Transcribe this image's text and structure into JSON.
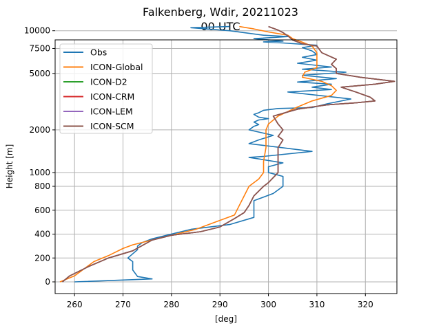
{
  "chart_data": {
    "type": "line",
    "title": "Falkenberg, Wdir, 20211023",
    "subtitle": "00 UTC",
    "xlabel": "[deg]",
    "ylabel": "Height [m]",
    "xlim": [
      256,
      326.5
    ],
    "xticks": [
      260,
      270,
      280,
      290,
      300,
      310,
      320
    ],
    "y_axis_note": "piecewise: linear 0-800 m, logarithmic 800-12000 m",
    "ylim": [
      -100,
      12000
    ],
    "yticks": [
      0,
      200,
      400,
      600,
      800,
      1000,
      2000,
      5000,
      7500,
      10000
    ],
    "grid": true,
    "legend_position": "top-left",
    "series": [
      {
        "name": "Obs",
        "color": "#1f77b4",
        "points": [
          [
            260,
            0
          ],
          [
            276,
            25
          ],
          [
            273,
            45
          ],
          [
            272,
            100
          ],
          [
            272,
            170
          ],
          [
            271,
            200
          ],
          [
            273,
            270
          ],
          [
            273,
            300
          ],
          [
            274,
            330
          ],
          [
            276,
            360
          ],
          [
            284,
            440
          ],
          [
            292,
            480
          ],
          [
            297,
            540
          ],
          [
            297,
            600
          ],
          [
            297,
            680
          ],
          [
            301,
            740
          ],
          [
            303,
            800
          ],
          [
            303,
            870
          ],
          [
            303,
            940
          ],
          [
            301,
            980
          ],
          [
            300,
            1000
          ],
          [
            300,
            1050
          ],
          [
            300,
            1100
          ],
          [
            303,
            1170
          ],
          [
            296,
            1280
          ],
          [
            299,
            1300
          ],
          [
            309,
            1410
          ],
          [
            296,
            1600
          ],
          [
            298,
            1700
          ],
          [
            301,
            1830
          ],
          [
            296,
            2000
          ],
          [
            297,
            2120
          ],
          [
            298,
            2180
          ],
          [
            297,
            2270
          ],
          [
            298,
            2350
          ],
          [
            300,
            2400
          ],
          [
            298,
            2460
          ],
          [
            297,
            2570
          ],
          [
            298,
            2640
          ],
          [
            299,
            2750
          ],
          [
            302,
            2830
          ],
          [
            309,
            2870
          ],
          [
            312,
            3050
          ],
          [
            317,
            3300
          ],
          [
            304,
            3700
          ],
          [
            313,
            3850
          ],
          [
            309,
            4000
          ],
          [
            313,
            4200
          ],
          [
            306,
            4350
          ],
          [
            314,
            4600
          ],
          [
            307,
            4850
          ],
          [
            316,
            5100
          ],
          [
            307,
            5350
          ],
          [
            313,
            5550
          ],
          [
            306,
            5900
          ],
          [
            310,
            6200
          ],
          [
            307,
            6500
          ],
          [
            310,
            6800
          ],
          [
            309,
            7200
          ],
          [
            307,
            7600
          ],
          [
            310,
            7900
          ],
          [
            303,
            8200
          ],
          [
            299,
            8350
          ],
          [
            303,
            8450
          ],
          [
            297,
            8800
          ],
          [
            304,
            9100
          ],
          [
            299,
            9300
          ],
          [
            292,
            10000
          ],
          [
            284,
            10500
          ],
          [
            292,
            10700
          ]
        ]
      },
      {
        "name": "ICON-Global",
        "color": "#ff7f0e",
        "points": [
          [
            257,
            0
          ],
          [
            260,
            50
          ],
          [
            264,
            170
          ],
          [
            267,
            220
          ],
          [
            270,
            280
          ],
          [
            272,
            310
          ],
          [
            277,
            360
          ],
          [
            280,
            390
          ],
          [
            285,
            440
          ],
          [
            289,
            500
          ],
          [
            293,
            560
          ],
          [
            294,
            640
          ],
          [
            295,
            720
          ],
          [
            296,
            800
          ],
          [
            298,
            900
          ],
          [
            299,
            1000
          ],
          [
            299,
            1200
          ],
          [
            299.5,
            1500
          ],
          [
            299.5,
            2000
          ],
          [
            300,
            2200
          ],
          [
            302,
            2500
          ],
          [
            306,
            2900
          ],
          [
            309,
            3200
          ],
          [
            313,
            3500
          ],
          [
            314,
            3800
          ],
          [
            313,
            4100
          ],
          [
            311,
            4400
          ],
          [
            307,
            4700
          ],
          [
            307.5,
            5100
          ],
          [
            310,
            5500
          ],
          [
            310,
            6000
          ],
          [
            310,
            6500
          ],
          [
            310,
            7000
          ],
          [
            309,
            7800
          ],
          [
            307,
            8300
          ],
          [
            305,
            8800
          ],
          [
            304,
            9300
          ],
          [
            300,
            9800
          ],
          [
            297,
            10300
          ],
          [
            294,
            10700
          ]
        ]
      },
      {
        "name": "ICON-D2",
        "color": "#2ca02c",
        "points": [
          [
            257.5,
            0
          ],
          [
            259,
            50
          ],
          [
            263,
            130
          ],
          [
            267,
            200
          ],
          [
            272,
            260
          ],
          [
            276,
            350
          ],
          [
            280,
            390
          ],
          [
            286,
            420
          ],
          [
            290,
            460
          ],
          [
            293,
            530
          ],
          [
            295,
            580
          ],
          [
            296,
            640
          ],
          [
            297,
            720
          ],
          [
            299,
            800
          ],
          [
            300,
            850
          ],
          [
            302,
            1000
          ],
          [
            302,
            1100
          ],
          [
            302,
            1300
          ],
          [
            302,
            1500
          ],
          [
            303,
            1700
          ],
          [
            302,
            1800
          ],
          [
            303,
            2000
          ],
          [
            302,
            2200
          ],
          [
            301,
            2500
          ],
          [
            306,
            2800
          ],
          [
            312,
            3000
          ],
          [
            318,
            3100
          ],
          [
            322,
            3200
          ],
          [
            321,
            3400
          ],
          [
            318,
            3700
          ],
          [
            315,
            4000
          ],
          [
            322,
            4200
          ],
          [
            326,
            4400
          ],
          [
            319,
            4700
          ],
          [
            314,
            5000
          ],
          [
            314,
            5400
          ],
          [
            313,
            5800
          ],
          [
            314,
            6300
          ],
          [
            311,
            7000
          ],
          [
            310,
            7800
          ],
          [
            307,
            8100
          ],
          [
            305,
            8600
          ],
          [
            304,
            9200
          ],
          [
            303,
            9700
          ],
          [
            302,
            10100
          ],
          [
            300,
            10700
          ]
        ]
      },
      {
        "name": "ICON-CRM",
        "color": "#d62728",
        "points": [
          [
            257.5,
            0
          ],
          [
            259,
            50
          ],
          [
            263,
            130
          ],
          [
            267,
            200
          ],
          [
            272,
            260
          ],
          [
            276,
            350
          ],
          [
            280,
            390
          ],
          [
            286,
            420
          ],
          [
            290,
            460
          ],
          [
            293,
            530
          ],
          [
            295,
            580
          ],
          [
            296,
            640
          ],
          [
            297,
            720
          ],
          [
            299,
            800
          ],
          [
            300,
            850
          ],
          [
            302,
            1000
          ],
          [
            302,
            1100
          ],
          [
            302,
            1300
          ],
          [
            302,
            1500
          ],
          [
            303,
            1700
          ],
          [
            302,
            1800
          ],
          [
            303,
            2000
          ],
          [
            302,
            2200
          ],
          [
            301,
            2500
          ],
          [
            306,
            2800
          ],
          [
            312,
            3000
          ],
          [
            318,
            3100
          ],
          [
            322,
            3200
          ],
          [
            321,
            3400
          ],
          [
            318,
            3700
          ],
          [
            315,
            4000
          ],
          [
            322,
            4200
          ],
          [
            326,
            4400
          ],
          [
            319,
            4700
          ],
          [
            314,
            5000
          ],
          [
            314,
            5400
          ],
          [
            313,
            5800
          ],
          [
            314,
            6300
          ],
          [
            311,
            7000
          ],
          [
            310,
            7800
          ],
          [
            307,
            8100
          ],
          [
            305,
            8600
          ],
          [
            304,
            9200
          ],
          [
            303,
            9700
          ],
          [
            302,
            10100
          ],
          [
            300,
            10700
          ]
        ]
      },
      {
        "name": "ICON-LEM",
        "color": "#9467bd",
        "points": [
          [
            257.5,
            0
          ],
          [
            259,
            50
          ],
          [
            263,
            130
          ],
          [
            267,
            200
          ],
          [
            272,
            260
          ],
          [
            276,
            350
          ],
          [
            280,
            390
          ],
          [
            286,
            420
          ],
          [
            290,
            460
          ],
          [
            293,
            530
          ],
          [
            295,
            580
          ],
          [
            296,
            640
          ],
          [
            297,
            720
          ],
          [
            299,
            800
          ],
          [
            300,
            850
          ],
          [
            302,
            1000
          ],
          [
            302,
            1100
          ],
          [
            302,
            1300
          ],
          [
            302,
            1500
          ],
          [
            303,
            1700
          ],
          [
            302,
            1800
          ],
          [
            303,
            2000
          ],
          [
            302,
            2200
          ],
          [
            301,
            2500
          ],
          [
            306,
            2800
          ],
          [
            312,
            3000
          ],
          [
            318,
            3100
          ],
          [
            322,
            3200
          ],
          [
            321,
            3400
          ],
          [
            318,
            3700
          ],
          [
            315,
            4000
          ],
          [
            322,
            4200
          ],
          [
            326,
            4400
          ],
          [
            319,
            4700
          ],
          [
            314,
            5000
          ],
          [
            314,
            5400
          ],
          [
            313,
            5800
          ],
          [
            314,
            6300
          ],
          [
            311,
            7000
          ],
          [
            310,
            7800
          ],
          [
            307,
            8100
          ],
          [
            305,
            8600
          ],
          [
            304,
            9200
          ],
          [
            303,
            9700
          ],
          [
            302,
            10100
          ],
          [
            300,
            10700
          ]
        ]
      },
      {
        "name": "ICON-SCM",
        "color": "#8c564b",
        "points": [
          [
            257.5,
            0
          ],
          [
            259,
            50
          ],
          [
            263,
            130
          ],
          [
            267,
            200
          ],
          [
            272,
            260
          ],
          [
            276,
            350
          ],
          [
            280,
            390
          ],
          [
            286,
            420
          ],
          [
            290,
            460
          ],
          [
            293,
            530
          ],
          [
            295,
            580
          ],
          [
            296,
            640
          ],
          [
            297,
            720
          ],
          [
            299,
            800
          ],
          [
            300,
            850
          ],
          [
            302,
            1000
          ],
          [
            302,
            1100
          ],
          [
            302,
            1300
          ],
          [
            302,
            1500
          ],
          [
            303,
            1700
          ],
          [
            302,
            1800
          ],
          [
            303,
            2000
          ],
          [
            302,
            2200
          ],
          [
            301,
            2500
          ],
          [
            306,
            2800
          ],
          [
            312,
            3000
          ],
          [
            318,
            3100
          ],
          [
            322,
            3200
          ],
          [
            321,
            3400
          ],
          [
            318,
            3700
          ],
          [
            315,
            4000
          ],
          [
            322,
            4200
          ],
          [
            326,
            4400
          ],
          [
            319,
            4700
          ],
          [
            314,
            5000
          ],
          [
            314,
            5400
          ],
          [
            313,
            5800
          ],
          [
            314,
            6300
          ],
          [
            311,
            7000
          ],
          [
            310,
            7800
          ],
          [
            307,
            8100
          ],
          [
            305,
            8600
          ],
          [
            304,
            9200
          ],
          [
            303,
            9700
          ],
          [
            302,
            10100
          ],
          [
            300,
            10700
          ]
        ]
      }
    ]
  }
}
